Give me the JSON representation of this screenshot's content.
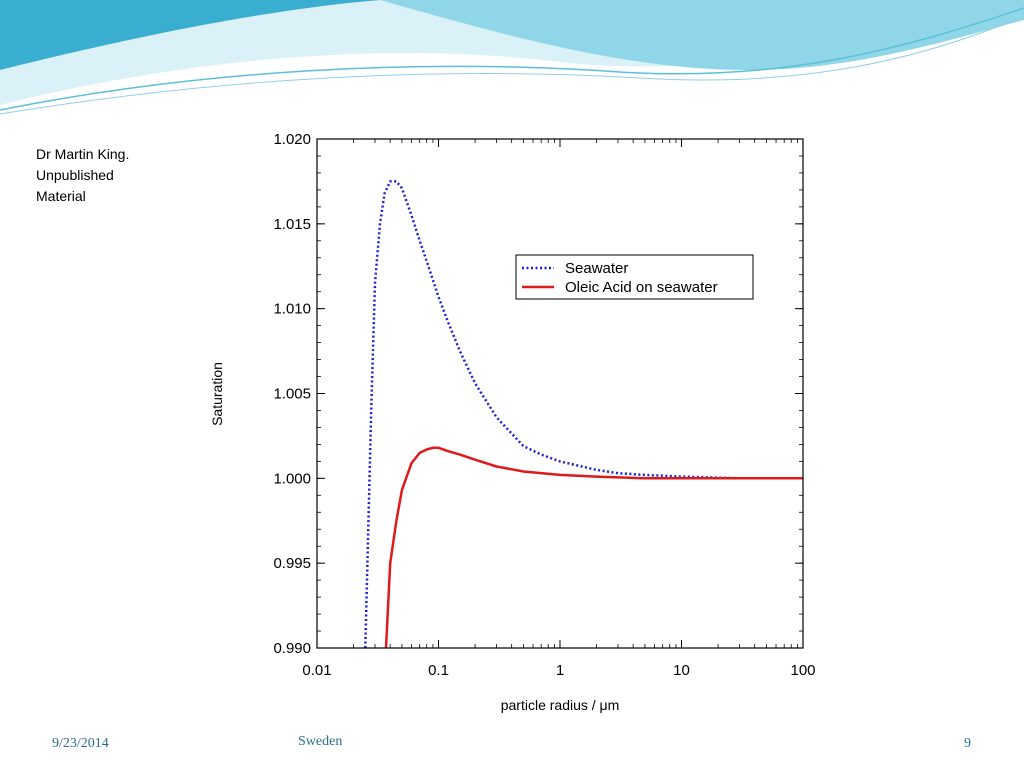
{
  "slide": {
    "note_lines": [
      "Dr Martin King.",
      "Unpublished",
      "Material"
    ],
    "footer_date": "9/23/2014",
    "footer_center": "Sweden",
    "page_number": "9",
    "theme_colors": {
      "wave_dark": "#3aaed0",
      "wave_light": "#bfe8f2",
      "footer_text": "#2a6f8a"
    }
  },
  "chart_data": {
    "type": "line",
    "title": "",
    "xlabel": "particle radius / μm",
    "ylabel": "Saturation",
    "xscale": "log",
    "xlim": [
      0.01,
      100
    ],
    "ylim": [
      0.99,
      1.02
    ],
    "x_ticks": [
      0.01,
      0.1,
      1,
      10,
      100
    ],
    "x_tick_labels": [
      "0.01",
      "0.1",
      "1",
      "10",
      "100"
    ],
    "y_ticks": [
      0.99,
      0.995,
      1.0,
      1.005,
      1.01,
      1.015,
      1.02
    ],
    "y_tick_labels": [
      "0.990",
      "0.995",
      "1.000",
      "1.005",
      "1.010",
      "1.015",
      "1.020"
    ],
    "grid": false,
    "legend": "upper-right",
    "series": [
      {
        "name": "Seawater",
        "color": "#1f1fd8",
        "style": "dotted",
        "x": [
          0.025,
          0.028,
          0.03,
          0.033,
          0.036,
          0.04,
          0.045,
          0.05,
          0.06,
          0.07,
          0.08,
          0.1,
          0.12,
          0.15,
          0.2,
          0.3,
          0.5,
          0.7,
          1.0,
          2.0,
          3.0,
          5.0,
          10.0,
          30.0,
          100.0
        ],
        "y": [
          0.99,
          1.0042,
          1.0115,
          1.015,
          1.0168,
          1.0175,
          1.0175,
          1.0171,
          1.0155,
          1.014,
          1.0128,
          1.0107,
          1.0092,
          1.0075,
          1.0056,
          1.0036,
          1.0019,
          1.0014,
          1.001,
          1.0005,
          1.0003,
          1.0002,
          1.0001,
          1.0,
          1.0
        ]
      },
      {
        "name": "Oleic Acid on seawater",
        "color": "#e01a1a",
        "style": "solid",
        "x": [
          0.037,
          0.04,
          0.045,
          0.05,
          0.06,
          0.07,
          0.08,
          0.09,
          0.1,
          0.12,
          0.15,
          0.2,
          0.3,
          0.5,
          1.0,
          2.0,
          5.0,
          10.0,
          100.0
        ],
        "y": [
          0.99,
          0.995,
          0.9975,
          0.9993,
          1.0009,
          1.0015,
          1.0017,
          1.0018,
          1.0018,
          1.0016,
          1.0014,
          1.0011,
          1.0007,
          1.0004,
          1.0002,
          1.0001,
          1.0,
          1.0,
          1.0
        ]
      }
    ]
  }
}
